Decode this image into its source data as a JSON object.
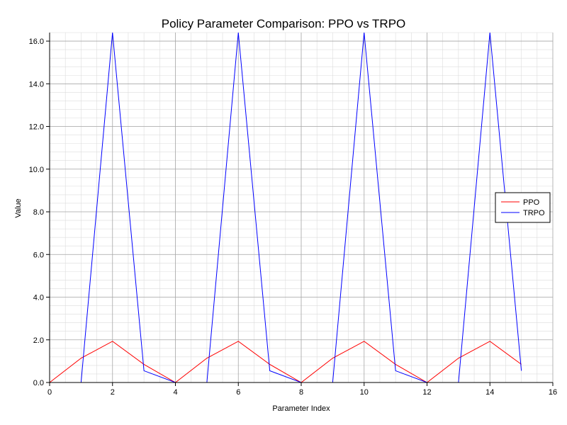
{
  "chart_data": {
    "type": "line",
    "title": "Policy Parameter Comparison: PPO vs TRPO",
    "xlabel": "Parameter Index",
    "ylabel": "Value",
    "xlim": [
      0,
      16
    ],
    "ylim": [
      0,
      16.4
    ],
    "xticks": [
      0,
      2,
      4,
      6,
      8,
      10,
      12,
      14,
      16
    ],
    "yticks": [
      0.0,
      2.0,
      4.0,
      6.0,
      8.0,
      10.0,
      12.0,
      14.0,
      16.0
    ],
    "grid": true,
    "legend_position": "right",
    "x": [
      0,
      1,
      2,
      3,
      4,
      5,
      6,
      7,
      8,
      9,
      10,
      11,
      12,
      13,
      14,
      15
    ],
    "series": [
      {
        "name": "PPO",
        "color": "#ff0000",
        "values": [
          0,
          1.14,
          1.93,
          0.85,
          0,
          1.14,
          1.93,
          0.85,
          0,
          1.14,
          1.93,
          0.85,
          0,
          1.14,
          1.93,
          0.85
        ]
      },
      {
        "name": "TRPO",
        "color": "#0000ff",
        "values": [
          0,
          0,
          16.4,
          0.55,
          0,
          0,
          16.4,
          0.55,
          0,
          0,
          16.4,
          0.55,
          0,
          0,
          16.4,
          0.55
        ]
      }
    ]
  }
}
